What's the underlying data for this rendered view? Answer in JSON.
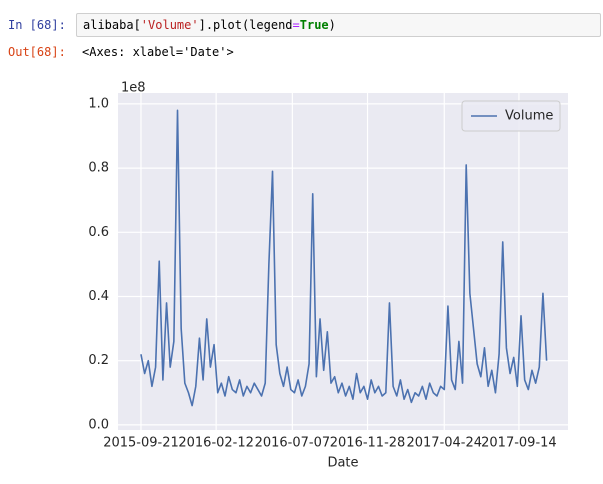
{
  "input": {
    "prompt": "In [68]:",
    "code_parts": [
      "alibaba[",
      "'Volume'",
      "].plot(legend",
      "=",
      "True",
      ")"
    ]
  },
  "output": {
    "prompt": "Out[68]:",
    "text": "<Axes: xlabel='Date'>"
  },
  "chart_data": {
    "type": "line",
    "xlabel": "Date",
    "offset_text": "1e8",
    "x": [
      "2015-09-21",
      "2015-09-28",
      "2015-10-05",
      "2015-10-12",
      "2015-10-19",
      "2015-10-26",
      "2015-11-02",
      "2015-11-09",
      "2015-11-16",
      "2015-11-23",
      "2015-11-30",
      "2015-12-07",
      "2015-12-14",
      "2015-12-21",
      "2015-12-28",
      "2016-01-04",
      "2016-01-11",
      "2016-01-18",
      "2016-01-25",
      "2016-02-01",
      "2016-02-08",
      "2016-02-15",
      "2016-02-22",
      "2016-02-29",
      "2016-03-07",
      "2016-03-14",
      "2016-03-21",
      "2016-03-28",
      "2016-04-04",
      "2016-04-11",
      "2016-04-18",
      "2016-04-25",
      "2016-05-02",
      "2016-05-09",
      "2016-05-16",
      "2016-05-23",
      "2016-05-30",
      "2016-06-06",
      "2016-06-13",
      "2016-06-20",
      "2016-06-27",
      "2016-07-04",
      "2016-07-11",
      "2016-07-18",
      "2016-07-25",
      "2016-08-01",
      "2016-08-08",
      "2016-08-15",
      "2016-08-22",
      "2016-08-29",
      "2016-09-05",
      "2016-09-12",
      "2016-09-19",
      "2016-09-26",
      "2016-10-03",
      "2016-10-10",
      "2016-10-17",
      "2016-10-24",
      "2016-10-31",
      "2016-11-07",
      "2016-11-14",
      "2016-11-21",
      "2016-11-28",
      "2016-12-05",
      "2016-12-12",
      "2016-12-19",
      "2016-12-26",
      "2017-01-02",
      "2017-01-09",
      "2017-01-16",
      "2017-01-23",
      "2017-01-30",
      "2017-02-06",
      "2017-02-13",
      "2017-02-20",
      "2017-02-27",
      "2017-03-06",
      "2017-03-13",
      "2017-03-20",
      "2017-03-27",
      "2017-04-03",
      "2017-04-10",
      "2017-04-17",
      "2017-04-24",
      "2017-05-01",
      "2017-05-08",
      "2017-05-15",
      "2017-05-22",
      "2017-05-29",
      "2017-06-05",
      "2017-06-12",
      "2017-06-19",
      "2017-06-26",
      "2017-07-03",
      "2017-07-10",
      "2017-07-17",
      "2017-07-24",
      "2017-07-31",
      "2017-08-07",
      "2017-08-14",
      "2017-08-21",
      "2017-08-28",
      "2017-09-04",
      "2017-09-11",
      "2017-09-18",
      "2017-09-25",
      "2017-10-02",
      "2017-10-09",
      "2017-10-16",
      "2017-10-23",
      "2017-10-30",
      "2017-11-06"
    ],
    "series": [
      {
        "name": "Volume",
        "color": "#4c72b0",
        "values": [
          0.22,
          0.16,
          0.2,
          0.12,
          0.18,
          0.51,
          0.14,
          0.38,
          0.18,
          0.26,
          0.98,
          0.3,
          0.13,
          0.1,
          0.06,
          0.12,
          0.27,
          0.14,
          0.33,
          0.18,
          0.25,
          0.1,
          0.13,
          0.09,
          0.15,
          0.11,
          0.1,
          0.14,
          0.09,
          0.12,
          0.1,
          0.13,
          0.11,
          0.09,
          0.13,
          0.5,
          0.79,
          0.25,
          0.16,
          0.12,
          0.18,
          0.11,
          0.1,
          0.14,
          0.09,
          0.12,
          0.19,
          0.72,
          0.15,
          0.33,
          0.17,
          0.29,
          0.13,
          0.15,
          0.1,
          0.13,
          0.09,
          0.12,
          0.08,
          0.16,
          0.1,
          0.12,
          0.08,
          0.14,
          0.1,
          0.12,
          0.09,
          0.1,
          0.38,
          0.12,
          0.09,
          0.14,
          0.08,
          0.11,
          0.07,
          0.1,
          0.09,
          0.12,
          0.08,
          0.13,
          0.1,
          0.09,
          0.12,
          0.11,
          0.37,
          0.14,
          0.11,
          0.26,
          0.13,
          0.81,
          0.41,
          0.3,
          0.19,
          0.15,
          0.24,
          0.12,
          0.17,
          0.1,
          0.22,
          0.57,
          0.24,
          0.16,
          0.21,
          0.12,
          0.34,
          0.14,
          0.11,
          0.17,
          0.13,
          0.18,
          0.41,
          0.2
        ]
      }
    ],
    "xlim": [
      "2015-08-08",
      "2017-12-17"
    ],
    "xticks": [
      "2015-09-21",
      "2016-02-12",
      "2016-07-07",
      "2016-11-28",
      "2017-04-24",
      "2017-09-14"
    ],
    "ylim": [
      -0.016,
      1.034
    ],
    "yticks": [
      {
        "value": 0,
        "label": "0.0"
      },
      0.2,
      0.4,
      0.6,
      0.8,
      {
        "value": 1,
        "label": "1.0"
      }
    ],
    "grid": true,
    "legend": "upper right",
    "background": "#eaeaf2"
  }
}
